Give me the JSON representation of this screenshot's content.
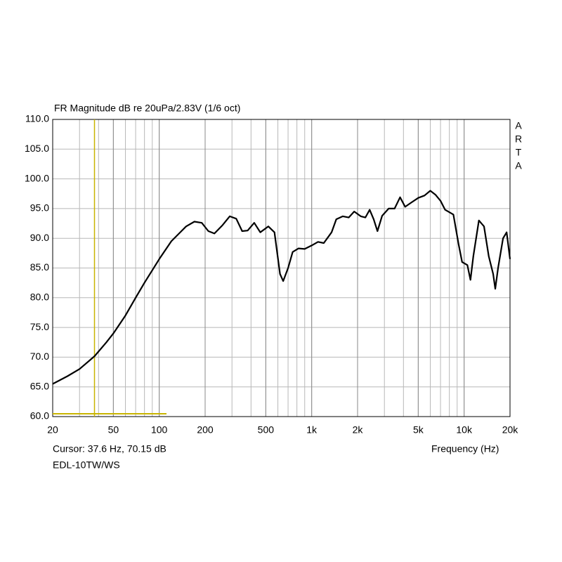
{
  "chart_data": {
    "type": "line",
    "title": "FR Magnitude dB re 20uPa/2.83V (1/6 oct)",
    "x_label": "Frequency (Hz)",
    "side_label": "ARTA",
    "cursor_label": "Cursor: 37.6 Hz, 70.15 dB",
    "device_label": "EDL-10TW/WS",
    "cursor": {
      "x": 37.6,
      "y": 70.15,
      "color": "#c8b400"
    },
    "xscale": "log",
    "grid": true,
    "xlim": [
      20,
      20000
    ],
    "ylim": [
      60,
      110
    ],
    "xticks": [
      20,
      50,
      100,
      200,
      500,
      {
        "value": 1000,
        "label": "1k"
      },
      {
        "value": 2000,
        "label": "2k"
      },
      {
        "value": 5000,
        "label": "5k"
      },
      {
        "value": 10000,
        "label": "10k"
      },
      {
        "value": 20000,
        "label": "20k"
      }
    ],
    "xgrid": [
      20,
      30,
      40,
      50,
      60,
      70,
      80,
      90,
      100,
      200,
      300,
      400,
      500,
      600,
      700,
      800,
      900,
      1000,
      2000,
      3000,
      4000,
      5000,
      6000,
      7000,
      8000,
      9000,
      10000,
      20000
    ],
    "yticks": [
      {
        "value": 60,
        "label": "60.0"
      },
      {
        "value": 65,
        "label": "65.0"
      },
      {
        "value": 70,
        "label": "70.0"
      },
      {
        "value": 75,
        "label": "75.0"
      },
      {
        "value": 80,
        "label": "80.0"
      },
      {
        "value": 85,
        "label": "85.0"
      },
      {
        "value": 90,
        "label": "90.0"
      },
      {
        "value": 95,
        "label": "95.0"
      },
      {
        "value": 100,
        "label": "100.0"
      },
      {
        "value": 105,
        "label": "105.0"
      },
      {
        "value": 110,
        "label": "110.0"
      }
    ],
    "series": [
      {
        "color": "#000000",
        "x": [
          20,
          25,
          30,
          37.6,
          45,
          50,
          60,
          70,
          80,
          100,
          120,
          150,
          170,
          190,
          210,
          230,
          260,
          290,
          320,
          350,
          380,
          420,
          460,
          520,
          570,
          620,
          650,
          700,
          750,
          820,
          900,
          1000,
          1100,
          1200,
          1350,
          1450,
          1600,
          1750,
          1900,
          2100,
          2250,
          2400,
          2550,
          2700,
          2900,
          3200,
          3500,
          3800,
          4100,
          4500,
          5000,
          5500,
          6000,
          6500,
          7000,
          7500,
          8500,
          9200,
          9700,
          10500,
          11000,
          11500,
          12500,
          13500,
          14500,
          15500,
          16000,
          16700,
          18000,
          19000,
          20000
        ],
        "values": [
          65.5,
          66.8,
          68.0,
          70.15,
          72.5,
          74,
          77,
          80,
          82.5,
          86.5,
          89.5,
          92,
          92.8,
          92.6,
          91.2,
          90.8,
          92.2,
          93.7,
          93.3,
          91.2,
          91.3,
          92.6,
          91.0,
          92.0,
          91.0,
          84,
          82.8,
          85,
          87.7,
          88.3,
          88.2,
          88.8,
          89.4,
          89.2,
          91,
          93.2,
          93.7,
          93.5,
          94.5,
          93.7,
          93.5,
          94.8,
          93.2,
          91.2,
          93.8,
          95,
          95,
          96.9,
          95.3,
          96,
          96.8,
          97.2,
          98,
          97.3,
          96.3,
          94.8,
          94,
          89,
          86,
          85.5,
          83,
          87,
          93,
          92,
          87,
          84,
          81.5,
          85,
          90,
          91,
          86.5
        ]
      }
    ]
  }
}
